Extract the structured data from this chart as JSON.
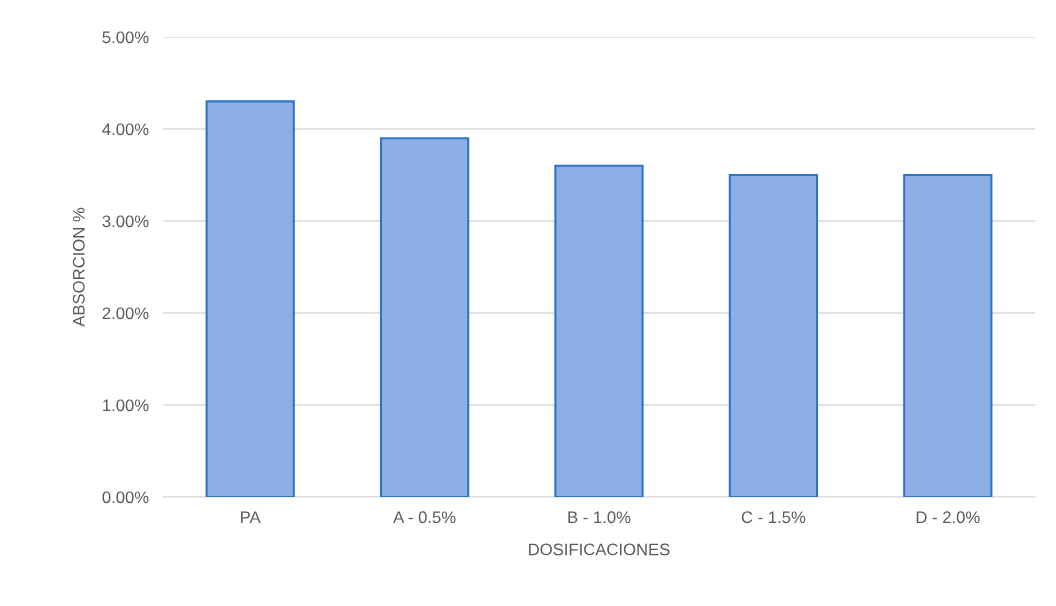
{
  "chart_data": {
    "type": "bar",
    "xlabel": "DOSIFICACIONES",
    "ylabel": "ABSORCION %",
    "categories": [
      "PA",
      "A - 0.5%",
      "B - 1.0%",
      "C - 1.5%",
      "D - 2.0%"
    ],
    "values": [
      4.3,
      3.9,
      3.6,
      3.5,
      3.5
    ],
    "color": "#8eaee6",
    "ylim": [
      0,
      5
    ],
    "yticks": [
      {
        "value": 0,
        "label": "0.00%"
      },
      {
        "value": 1,
        "label": "1.00%"
      },
      {
        "value": 2,
        "label": "2.00%"
      },
      {
        "value": 3,
        "label": "3.00%"
      },
      {
        "value": 4,
        "label": "4.00%"
      },
      {
        "value": 5,
        "label": "5.00%"
      }
    ],
    "grid": "y",
    "legend": false
  }
}
